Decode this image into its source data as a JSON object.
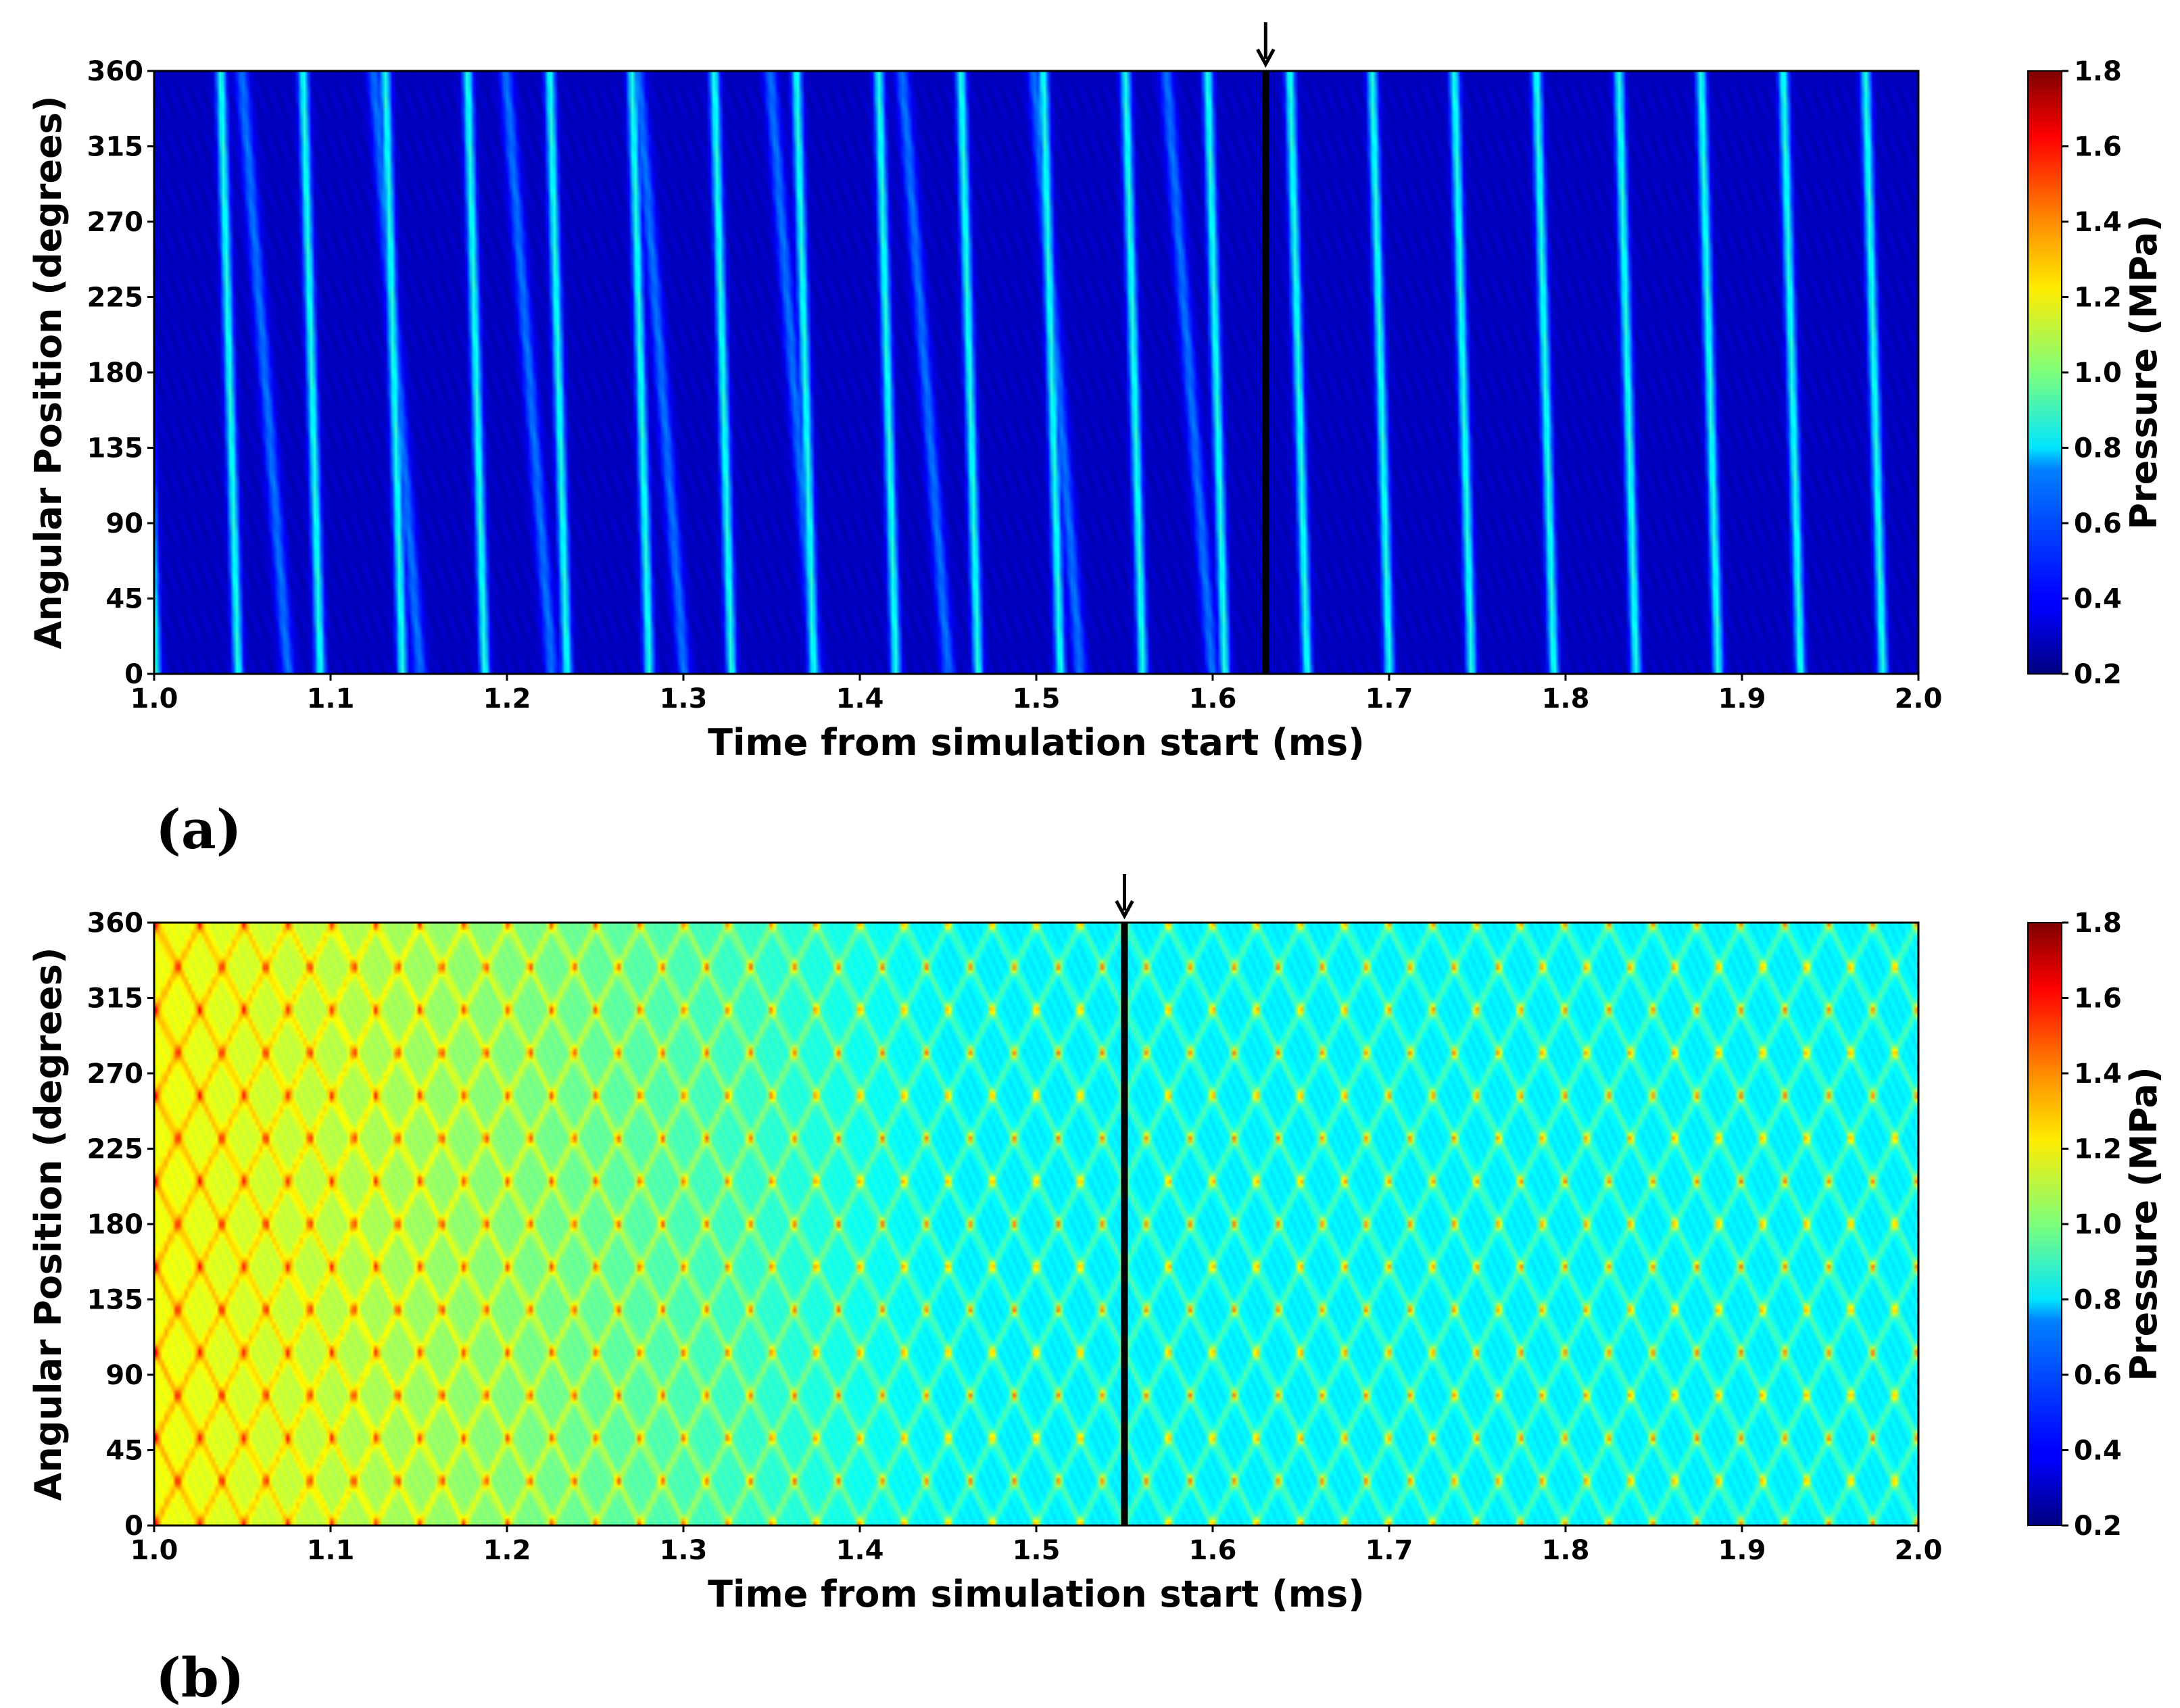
{
  "chart_data": [
    {
      "type": "heatmap",
      "panel_label": "(a)",
      "xlabel": "Time from simulation start (ms)",
      "ylabel": "Angular Position (degrees)",
      "xlim": [
        1.0,
        2.0
      ],
      "ylim": [
        0,
        360
      ],
      "xticks": [
        "1.0",
        "1.1",
        "1.2",
        "1.3",
        "1.4",
        "1.5",
        "1.6",
        "1.7",
        "1.8",
        "1.9",
        "2.0"
      ],
      "yticks": [
        "0",
        "45",
        "90",
        "135",
        "180",
        "225",
        "270",
        "315",
        "360"
      ],
      "colorbar": {
        "label": "Pressure (MPa)",
        "range": [
          0.2,
          1.8
        ],
        "ticks": [
          "0.2",
          "0.4",
          "0.6",
          "0.8",
          "1.0",
          "1.2",
          "1.4",
          "1.6",
          "1.8"
        ],
        "colormap": "jet"
      },
      "marker": {
        "time": 1.63
      },
      "pattern": "diagonal bands of elevated pressure moving toward lower angle with time",
      "background_pressure": 0.3,
      "peak_pressure": 0.85
    },
    {
      "type": "heatmap",
      "panel_label": "(b)",
      "xlabel": "Time from simulation start (ms)",
      "ylabel": "Angular Position (degrees)",
      "xlim": [
        1.0,
        2.0
      ],
      "ylim": [
        0,
        360
      ],
      "xticks": [
        "1.0",
        "1.1",
        "1.2",
        "1.3",
        "1.4",
        "1.5",
        "1.6",
        "1.7",
        "1.8",
        "1.9",
        "2.0"
      ],
      "yticks": [
        "0",
        "45",
        "90",
        "135",
        "180",
        "225",
        "270",
        "315",
        "360"
      ],
      "colorbar": {
        "label": "Pressure (MPa)",
        "range": [
          0.2,
          1.8
        ],
        "ticks": [
          "0.2",
          "0.4",
          "0.6",
          "0.8",
          "1.0",
          "1.2",
          "1.4",
          "1.6",
          "1.8"
        ],
        "colormap": "jet"
      },
      "marker": {
        "time": 1.55
      },
      "pattern": "crossing diagonal bands forming a diamond lattice",
      "background_pressure": 1.1,
      "peak_pressure": 1.5
    }
  ]
}
